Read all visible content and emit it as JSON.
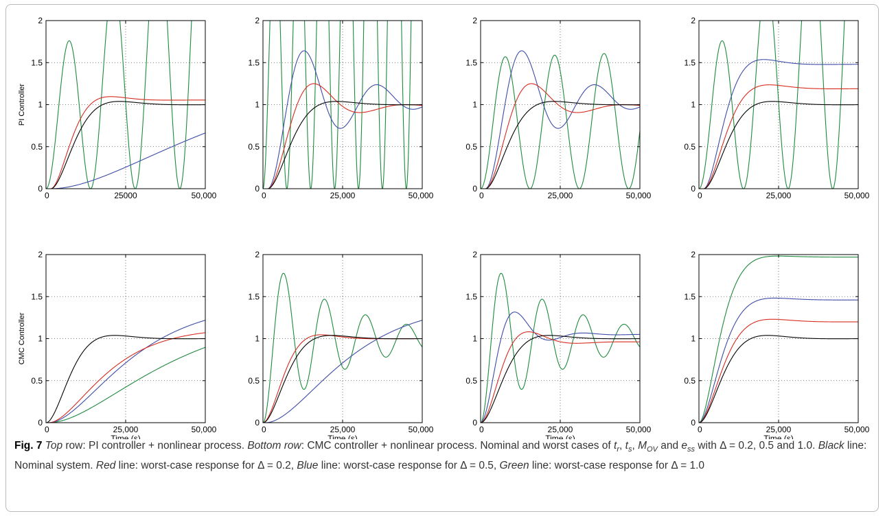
{
  "caption": {
    "fig_label": "Fig. 7",
    "s1_i": "Top",
    "s1": " row: PI controller + nonlinear process. ",
    "s2_i": "Bottom row",
    "s2": ": CMC controller + nonlinear process. Nominal and worst cases of ",
    "tr_base": "t",
    "tr_sub": "r",
    "sep1": ", ",
    "ts_base": "t",
    "ts_sub": "s",
    "sep2": ", ",
    "mov_base": "M",
    "mov_sub": "OV",
    "and": " and ",
    "ess_base": "e",
    "ess_sub": "ss",
    "s3": " with Δ = 0.2, 0.5 and 1.0. ",
    "black_i": "Black",
    "s4": " line: Nominal system. ",
    "red_i": "Red",
    "s5": " line: worst-case response for Δ = 0.2, ",
    "blue_i": "Blue",
    "s6": " line: worst-case response for Δ = 0.5, ",
    "green_i": "Green",
    "s7": " line: worst-case response for Δ = 1.0"
  },
  "colors": {
    "nominal": "#000000",
    "delta_0_2": "#d62b1f",
    "delta_0_5": "#3d4ba8",
    "delta_1_0": "#1d8a3c"
  },
  "chart_data": [
    {
      "type": "line",
      "row": 1,
      "col": 1,
      "ylabel": "PI Controller",
      "xlabel": "",
      "xlim": [
        0,
        50000
      ],
      "ylim": [
        0,
        2
      ],
      "x_ticks": [
        "0",
        "25000",
        "50,000"
      ],
      "y_ticks": [
        "0",
        "0.5",
        "1",
        "1.5",
        "2"
      ],
      "grid": "dotted",
      "series": [
        {
          "color_key": "delta_1_0",
          "model": {
            "kind": "sine",
            "A": 0.7,
            "period": 14000,
            "start": 1200,
            "grow": 1.8
          }
        },
        {
          "color_key": "delta_0_5",
          "model": {
            "kind": "ramp",
            "final": 1.38,
            "tau": 30000,
            "d": 1500
          }
        },
        {
          "color_key": "delta_0_2",
          "model": {
            "kind": "second",
            "final": 1.055,
            "wn": 0.00024,
            "zeta": 0.72,
            "d": 1500
          }
        },
        {
          "color_key": "nominal",
          "model": {
            "kind": "second",
            "final": 1.0,
            "wn": 0.00021,
            "zeta": 0.72,
            "d": 1500
          }
        }
      ]
    },
    {
      "type": "line",
      "row": 1,
      "col": 2,
      "ylabel": "",
      "xlabel": "",
      "xlim": [
        0,
        50000
      ],
      "ylim": [
        0,
        2
      ],
      "x_ticks": [
        "0",
        "25,000",
        "50,000"
      ],
      "y_ticks": [
        "0",
        "0.5",
        "1",
        "1.5",
        "2"
      ],
      "grid": "dotted",
      "series": [
        {
          "color_key": "delta_1_0",
          "model": {
            "kind": "sine",
            "A": 1.5,
            "period": 7500,
            "start": 1000,
            "grow": 1.0
          }
        },
        {
          "color_key": "delta_0_5",
          "model": {
            "kind": "second",
            "final": 1.05,
            "wn": 0.00028,
            "zeta": 0.18,
            "d": 1500
          }
        },
        {
          "color_key": "delta_0_2",
          "model": {
            "kind": "second",
            "final": 0.98,
            "wn": 0.000235,
            "zeta": 0.38,
            "d": 1500
          }
        },
        {
          "color_key": "nominal",
          "model": {
            "kind": "second",
            "final": 1.0,
            "wn": 0.00021,
            "zeta": 0.72,
            "d": 1500
          }
        }
      ]
    },
    {
      "type": "line",
      "row": 1,
      "col": 3,
      "ylabel": "",
      "xlabel": "",
      "xlim": [
        0,
        50000
      ],
      "ylim": [
        0,
        2
      ],
      "x_ticks": [
        "0",
        "25,000",
        "50,000"
      ],
      "y_ticks": [
        "0",
        "0.5",
        "1",
        "1.5",
        "2"
      ],
      "grid": "dotted",
      "series": [
        {
          "color_key": "delta_1_0",
          "model": {
            "kind": "sine",
            "A": 0.78,
            "period": 15500,
            "start": 1500,
            "grow": 0.04
          }
        },
        {
          "color_key": "delta_0_5",
          "model": {
            "kind": "second",
            "final": 1.05,
            "wn": 0.00028,
            "zeta": 0.18,
            "d": 1500
          }
        },
        {
          "color_key": "delta_0_2",
          "model": {
            "kind": "second",
            "final": 0.98,
            "wn": 0.000235,
            "zeta": 0.38,
            "d": 1500
          }
        },
        {
          "color_key": "nominal",
          "model": {
            "kind": "second",
            "final": 1.0,
            "wn": 0.00021,
            "zeta": 0.72,
            "d": 1500
          }
        }
      ]
    },
    {
      "type": "line",
      "row": 1,
      "col": 4,
      "ylabel": "",
      "xlabel": "",
      "xlim": [
        0,
        50000
      ],
      "ylim": [
        0,
        2
      ],
      "x_ticks": [
        "0",
        "25,000",
        "50,000"
      ],
      "y_ticks": [
        "0",
        "0.5",
        "1",
        "1.5",
        "2"
      ],
      "grid": "dotted",
      "series": [
        {
          "color_key": "delta_1_0",
          "model": {
            "kind": "sine",
            "A": 0.7,
            "period": 14000,
            "start": 1200,
            "grow": 1.8
          }
        },
        {
          "color_key": "delta_0_5",
          "model": {
            "kind": "second",
            "final": 1.48,
            "wn": 0.00024,
            "zeta": 0.72,
            "d": 1500
          }
        },
        {
          "color_key": "delta_0_2",
          "model": {
            "kind": "second",
            "final": 1.19,
            "wn": 0.00022,
            "zeta": 0.72,
            "d": 1500
          }
        },
        {
          "color_key": "nominal",
          "model": {
            "kind": "second",
            "final": 1.0,
            "wn": 0.00021,
            "zeta": 0.72,
            "d": 1500
          }
        }
      ]
    },
    {
      "type": "line",
      "row": 2,
      "col": 1,
      "ylabel": "CMC Controller",
      "xlabel": "Time (s)",
      "xlim": [
        0,
        50000
      ],
      "ylim": [
        0,
        2
      ],
      "x_ticks": [
        "0",
        "25,000",
        "50,000"
      ],
      "y_ticks": [
        "0",
        "0.5",
        "1",
        "1.5",
        "2"
      ],
      "grid": "dotted",
      "series": [
        {
          "color_key": "delta_1_0",
          "model": {
            "kind": "ramp",
            "final": 1.32,
            "tau": 21000,
            "d": 800
          }
        },
        {
          "color_key": "delta_0_5",
          "model": {
            "kind": "ramp",
            "final": 1.43,
            "tau": 14500,
            "d": 800
          }
        },
        {
          "color_key": "delta_0_2",
          "model": {
            "kind": "ramp",
            "final": 1.13,
            "tau": 10500,
            "d": 800
          }
        },
        {
          "color_key": "nominal",
          "model": {
            "kind": "second",
            "final": 1.0,
            "wn": 0.00021,
            "zeta": 0.72,
            "d": 0
          }
        }
      ]
    },
    {
      "type": "line",
      "row": 2,
      "col": 2,
      "ylabel": "",
      "xlabel": "Time (s)",
      "xlim": [
        0,
        50000
      ],
      "ylim": [
        0,
        2
      ],
      "x_ticks": [
        "0",
        "25,000",
        "50,000"
      ],
      "y_ticks": [
        "0",
        "0.5",
        "1",
        "1.5",
        "2"
      ],
      "grid": "dotted",
      "series": [
        {
          "color_key": "delta_1_0",
          "model": {
            "kind": "second",
            "final": 1.0,
            "wn": 0.00049,
            "zeta": 0.08,
            "d": 0
          }
        },
        {
          "color_key": "delta_0_5",
          "model": {
            "kind": "ramp",
            "final": 1.43,
            "tau": 14500,
            "d": 800
          }
        },
        {
          "color_key": "delta_0_2",
          "model": {
            "kind": "second",
            "final": 1.0,
            "wn": 0.00024,
            "zeta": 0.7,
            "d": 0
          }
        },
        {
          "color_key": "nominal",
          "model": {
            "kind": "second",
            "final": 1.0,
            "wn": 0.00021,
            "zeta": 0.72,
            "d": 0
          }
        }
      ]
    },
    {
      "type": "line",
      "row": 2,
      "col": 3,
      "ylabel": "",
      "xlabel": "Time (s)",
      "xlim": [
        0,
        50000
      ],
      "ylim": [
        0,
        2
      ],
      "x_ticks": [
        "0",
        "25,000",
        "50,000"
      ],
      "y_ticks": [
        "0",
        "0.5",
        "1",
        "1.5",
        "2"
      ],
      "grid": "dotted",
      "series": [
        {
          "color_key": "delta_1_0",
          "model": {
            "kind": "second",
            "final": 1.0,
            "wn": 0.00049,
            "zeta": 0.08,
            "d": 0
          }
        },
        {
          "color_key": "delta_0_5",
          "model": {
            "kind": "second",
            "final": 1.05,
            "wn": 0.00032,
            "zeta": 0.4,
            "d": 0
          }
        },
        {
          "color_key": "delta_0_2",
          "model": {
            "kind": "second",
            "final": 0.96,
            "wn": 0.00025,
            "zeta": 0.55,
            "d": 0
          }
        },
        {
          "color_key": "nominal",
          "model": {
            "kind": "second",
            "final": 1.0,
            "wn": 0.00021,
            "zeta": 0.72,
            "d": 0
          }
        }
      ]
    },
    {
      "type": "line",
      "row": 2,
      "col": 4,
      "ylabel": "",
      "xlabel": "Time (s)",
      "xlim": [
        0,
        50000
      ],
      "ylim": [
        0,
        2
      ],
      "x_ticks": [
        "0",
        "25,000",
        "50,000"
      ],
      "y_ticks": [
        "0",
        "0.5",
        "1",
        "1.5",
        "2"
      ],
      "grid": "dotted",
      "series": [
        {
          "color_key": "delta_1_0",
          "model": {
            "kind": "second",
            "final": 1.97,
            "wn": 0.00024,
            "zeta": 0.85,
            "d": 0
          }
        },
        {
          "color_key": "delta_0_5",
          "model": {
            "kind": "second",
            "final": 1.46,
            "wn": 0.00022,
            "zeta": 0.8,
            "d": 0
          }
        },
        {
          "color_key": "delta_0_2",
          "model": {
            "kind": "second",
            "final": 1.2,
            "wn": 0.00021,
            "zeta": 0.76,
            "d": 0
          }
        },
        {
          "color_key": "nominal",
          "model": {
            "kind": "second",
            "final": 1.0,
            "wn": 0.00021,
            "zeta": 0.72,
            "d": 0
          }
        }
      ]
    }
  ]
}
